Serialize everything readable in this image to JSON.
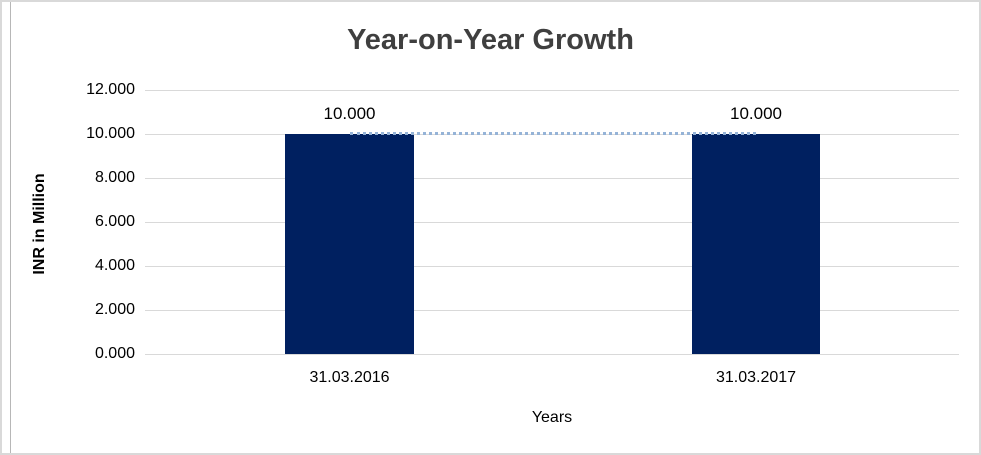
{
  "chart": {
    "title": "Year-on-Year Growth",
    "y_axis_title": "INR in Million",
    "x_axis_title": "Years"
  },
  "chart_data": {
    "type": "bar",
    "title": "Year-on-Year Growth",
    "xlabel": "Years",
    "ylabel": "INR in Million",
    "categories": [
      "31.03.2016",
      "31.03.2017"
    ],
    "series": [
      {
        "name": "bars",
        "type": "bar",
        "values": [
          10.0,
          10.0
        ],
        "color": "#002060"
      },
      {
        "name": "trend",
        "type": "line",
        "style": "dotted",
        "values": [
          10.0,
          10.0
        ],
        "color": "#95b3d7"
      }
    ],
    "value_labels": [
      "10.000",
      "10.000"
    ],
    "ylim": [
      0,
      12
    ],
    "ytick_step": 2,
    "ytick_labels": [
      "12.000",
      "10.000",
      "8.000",
      "6.000",
      "4.000",
      "2.000",
      "0.000"
    ],
    "grid": true,
    "legend": "none",
    "colors": {
      "bar": "#002060",
      "trend_line": "#95b3d7",
      "gridline": "#d9d9d9",
      "text": "#000000",
      "title_text": "#3f3f3f",
      "frame_border": "#d9d9d9"
    }
  }
}
